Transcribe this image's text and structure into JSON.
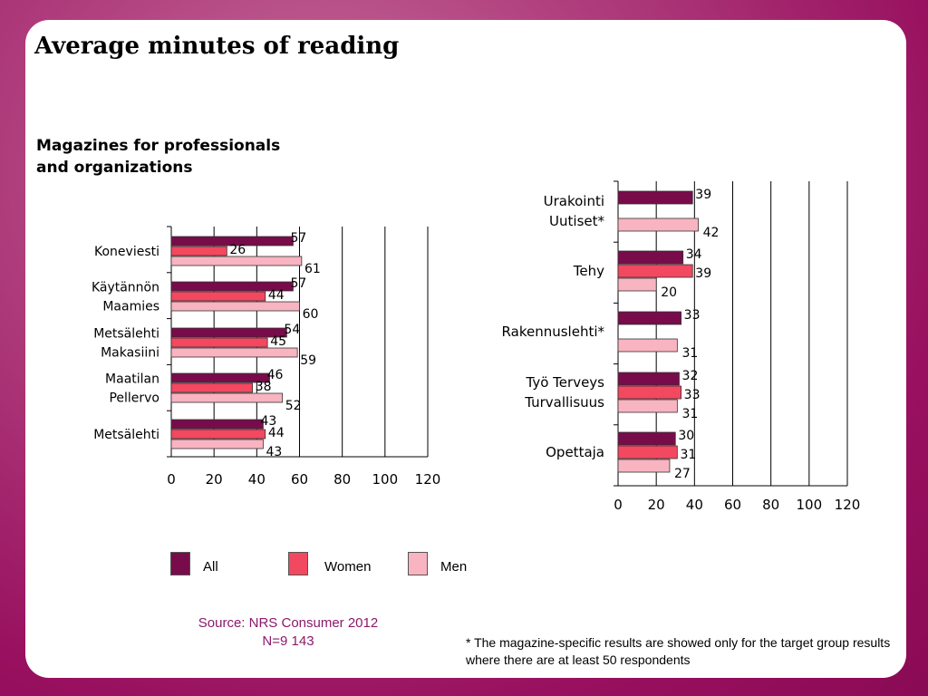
{
  "slide": {
    "title": "Average minutes of reading",
    "subtitle_line1": "Magazines for professionals",
    "subtitle_line2": "and organizations",
    "source_line1": "Source: NRS Consumer 2012",
    "source_line2": "N=9 143",
    "footnote": "* The magazine-specific results are showed only for the target group results where there are at least 50 respondents"
  },
  "colors": {
    "all": "#780c4a",
    "women": "#f24860",
    "men": "#f8b4c0",
    "source_text": "#8a1a6a"
  },
  "legend": [
    {
      "label": "All",
      "color": "#780c4a"
    },
    {
      "label": "Women",
      "color": "#f24860"
    },
    {
      "label": "Men",
      "color": "#f8b4c0"
    }
  ],
  "chart_data": [
    {
      "type": "bar",
      "orientation": "horizontal",
      "categories": [
        [
          "Koneviesti"
        ],
        [
          "Käytännön",
          "Maamies"
        ],
        [
          "Metsälehti",
          "Makasiini"
        ],
        [
          "Maatilan",
          "Pellervo"
        ],
        [
          "Metsälehti"
        ]
      ],
      "series": [
        {
          "name": "All",
          "values": [
            57,
            57,
            54,
            46,
            43
          ]
        },
        {
          "name": "Women",
          "values": [
            26,
            44,
            45,
            38,
            44
          ]
        },
        {
          "name": "Men",
          "values": [
            61,
            60,
            59,
            52,
            43
          ]
        }
      ],
      "xlim": [
        0,
        120
      ],
      "xticks": [
        0,
        20,
        40,
        60,
        80,
        100,
        120
      ],
      "grid": true,
      "legend_position": "bottom"
    },
    {
      "type": "bar",
      "orientation": "horizontal",
      "categories": [
        [
          "Urakointi",
          "Uutiset*"
        ],
        [
          "Tehy"
        ],
        [
          "Rakennuslehti*"
        ],
        [
          "Työ Terveys",
          "Turvallisuus"
        ],
        [
          "Opettaja"
        ]
      ],
      "series": [
        {
          "name": "All",
          "values": [
            39,
            34,
            33,
            32,
            30
          ]
        },
        {
          "name": "Women",
          "values": [
            null,
            39,
            null,
            33,
            31
          ]
        },
        {
          "name": "Men",
          "values": [
            42,
            20,
            31,
            31,
            27
          ]
        }
      ],
      "xlim": [
        0,
        120
      ],
      "xticks": [
        0,
        20,
        40,
        60,
        80,
        100,
        120
      ],
      "grid": true,
      "legend_position": "bottom"
    }
  ]
}
